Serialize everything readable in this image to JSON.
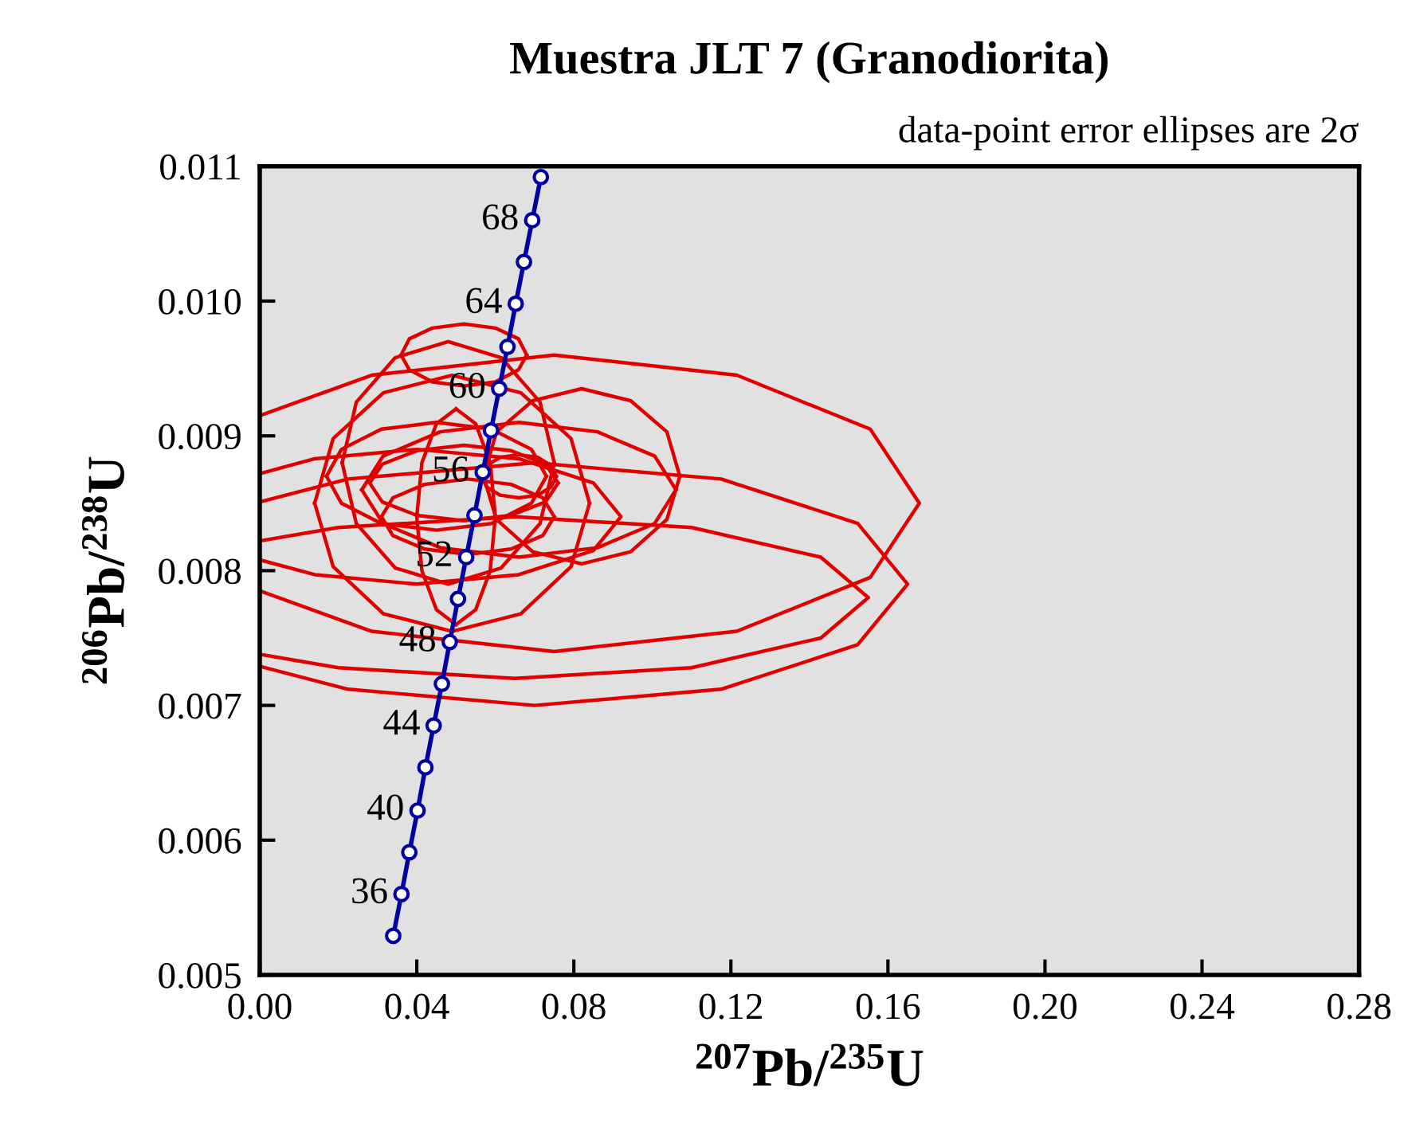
{
  "chart_data": {
    "type": "line",
    "title": "Muestra JLT 7 (Granodiorita)",
    "xlabel": "$^{207}$Pb/$^{235}$U",
    "ylabel": "$^{206}$Pb/$^{238}$U",
    "xlim": [
      0,
      0.28
    ],
    "ylim": [
      0.005,
      0.011
    ],
    "xticks": [
      {
        "value": 0,
        "label": "0.00"
      },
      {
        "value": 0.04,
        "label": "0.04"
      },
      {
        "value": 0.08,
        "label": "0.08"
      },
      {
        "value": 0.12,
        "label": "0.12"
      },
      {
        "value": 0.16,
        "label": "0.16"
      },
      {
        "value": 0.2,
        "label": "0.20"
      },
      {
        "value": 0.24,
        "label": "0.24"
      },
      {
        "value": 0.28,
        "label": "0.28"
      }
    ],
    "yticks": [
      {
        "value": 0.005,
        "label": "0.005"
      },
      {
        "value": 0.006,
        "label": "0.006"
      },
      {
        "value": 0.007,
        "label": "0.007"
      },
      {
        "value": 0.008,
        "label": "0.008"
      },
      {
        "value": 0.009,
        "label": "0.009"
      },
      {
        "value": 0.01,
        "label": "0.010"
      },
      {
        "value": 0.011,
        "label": "0.011"
      }
    ],
    "grid": false,
    "legend": false,
    "series": [
      {
        "type": "line",
        "color": "#0000a0",
        "marker": "circle",
        "x": [
          0.034,
          0.0361,
          0.0381,
          0.0402,
          0.0422,
          0.0443,
          0.0464,
          0.0484,
          0.0505,
          0.0526,
          0.0547,
          0.0568,
          0.0589,
          0.061,
          0.0631,
          0.0652,
          0.0673,
          0.0694,
          0.0716
        ],
        "values": [
          0.00529,
          0.0056,
          0.00591,
          0.00622,
          0.00654,
          0.00685,
          0.00716,
          0.00747,
          0.00779,
          0.0081,
          0.00841,
          0.00873,
          0.00904,
          0.00935,
          0.00966,
          0.00998,
          0.01029,
          0.0106,
          0.01092
        ]
      },
      {
        "color": "#e00000",
        "x": [
          0,
          0.0285,
          0.075,
          0.1215,
          0.1555,
          0.168,
          0.1555,
          0.1215,
          0.075,
          0.0285,
          0
        ],
        "values": [
          0.00915,
          0.00945,
          0.0096,
          0.00945,
          0.00905,
          0.0085,
          0.00795,
          0.00755,
          0.0074,
          0.00755,
          0.00785
        ]
      },
      {
        "color": "#e00000",
        "x": [
          0,
          0.0225,
          0.07,
          0.1175,
          0.1523,
          0.165,
          0.1523,
          0.1175,
          0.07,
          0.0225,
          0
        ],
        "values": [
          0.00851,
          0.00868,
          0.0088,
          0.00868,
          0.00835,
          0.0079,
          0.00745,
          0.00712,
          0.007,
          0.00712,
          0.00729
        ]
      },
      {
        "color": "#e00000",
        "x": [
          0,
          0.02,
          0.065,
          0.11,
          0.1429,
          0.155,
          0.1429,
          0.11,
          0.065,
          0.02,
          0
        ],
        "values": [
          0.00822,
          0.00832,
          0.0084,
          0.00832,
          0.0081,
          0.0078,
          0.0075,
          0.00728,
          0.0072,
          0.00728,
          0.00738
        ]
      },
      {
        "color": "#e00000",
        "x": [
          0,
          0.014,
          0.04,
          0.066,
          0.085,
          0.092,
          0.085,
          0.066,
          0.04,
          0.014,
          0
        ],
        "values": [
          0.00872,
          0.00883,
          0.0089,
          0.00883,
          0.00865,
          0.0084,
          0.00815,
          0.00797,
          0.0079,
          0.00797,
          0.00808
        ]
      },
      {
        "color": "#e00000",
        "x": [
          0.075,
          0.0714,
          0.0615,
          0.048,
          0.0345,
          0.0246,
          0.021
        ],
        "values": [
          0.0088,
          0.00925,
          0.00958,
          0.0097,
          0.00958,
          0.00925,
          0.0088
        ]
      },
      {
        "color": "#e00000",
        "x": [
          0.021,
          0.0246,
          0.0345,
          0.048,
          0.0615,
          0.0714,
          0.075
        ],
        "values": [
          0.0088,
          0.00835,
          0.00802,
          0.0079,
          0.00802,
          0.00835,
          0.0088
        ]
      },
      {
        "color": "#e00000",
        "x": [
          0.068,
          0.0659,
          0.06,
          0.052,
          0.044,
          0.0381,
          0.036
        ],
        "values": [
          0.0096,
          0.00972,
          0.0098,
          0.00983,
          0.0098,
          0.00972,
          0.0096
        ]
      },
      {
        "color": "#e00000",
        "x": [
          0.036,
          0.0381,
          0.044,
          0.052,
          0.06,
          0.0659,
          0.068
        ],
        "values": [
          0.0096,
          0.00949,
          0.0094,
          0.00937,
          0.0094,
          0.00949,
          0.0096
        ]
      },
      {
        "color": "#e00000",
        "x": [
          0.107,
          0.1037,
          0.0945,
          0.082,
          0.0695,
          0.0603,
          0.057
        ],
        "values": [
          0.0087,
          0.00903,
          0.00926,
          0.00935,
          0.00926,
          0.00903,
          0.0087
        ]
      },
      {
        "color": "#e00000",
        "x": [
          0.057,
          0.0603,
          0.0695,
          0.082,
          0.0945,
          0.1037,
          0.107
        ],
        "values": [
          0.0087,
          0.00838,
          0.00814,
          0.00805,
          0.00814,
          0.00838,
          0.0087
        ]
      },
      {
        "color": "#e00000",
        "x": [
          0.084,
          0.0793,
          0.0665,
          0.049,
          0.0315,
          0.0187,
          0.014
        ],
        "values": [
          0.0085,
          0.00898,
          0.00932,
          0.00945,
          0.00932,
          0.00898,
          0.0085
        ]
      },
      {
        "color": "#e00000",
        "x": [
          0.014,
          0.0187,
          0.0315,
          0.049,
          0.0665,
          0.0793,
          0.084
        ],
        "values": [
          0.0085,
          0.00803,
          0.00768,
          0.00755,
          0.00768,
          0.00803,
          0.0085
        ]
      },
      {
        "color": "#e00000",
        "x": [
          0.106,
          0.1006,
          0.086,
          0.066,
          0.046,
          0.0314,
          0.026
        ],
        "values": [
          0.0086,
          0.00885,
          0.00903,
          0.0091,
          0.00903,
          0.00885,
          0.0086
        ]
      },
      {
        "color": "#e00000",
        "x": [
          0.026,
          0.0314,
          0.046,
          0.066,
          0.086,
          0.1006,
          0.106
        ],
        "values": [
          0.0086,
          0.00835,
          0.00817,
          0.0081,
          0.00817,
          0.00835,
          0.0086
        ]
      },
      {
        "color": "#e00000",
        "x": [
          0.05,
          0.045,
          0.0413,
          0.04,
          0.0413,
          0.045,
          0.05
        ],
        "values": [
          0.0092,
          0.00909,
          0.0088,
          0.0084,
          0.008,
          0.00771,
          0.0076
        ]
      },
      {
        "color": "#e00000",
        "x": [
          0.05,
          0.055,
          0.0587,
          0.06,
          0.0587,
          0.055,
          0.05
        ],
        "values": [
          0.0076,
          0.00771,
          0.008,
          0.0084,
          0.0088,
          0.00909,
          0.0092
        ]
      },
      {
        "color": "#e00000",
        "x": [
          0.0755,
          0.0742,
          0.0708,
          0.066,
          0.0612,
          0.0578,
          0.0565
        ],
        "values": [
          0.0087,
          0.00878,
          0.00884,
          0.00886,
          0.00884,
          0.00878,
          0.0087
        ]
      },
      {
        "color": "#e00000",
        "x": [
          0.0565,
          0.0578,
          0.0612,
          0.066,
          0.0708,
          0.0742,
          0.0755
        ],
        "values": [
          0.0087,
          0.00862,
          0.00856,
          0.00854,
          0.00856,
          0.00862,
          0.0087
        ]
      },
      {
        "color": "#e00000",
        "x": [
          0.076,
          0.0728,
          0.064,
          0.052,
          0.04,
          0.0312,
          0.028
        ],
        "values": [
          0.00865,
          0.00879,
          0.00889,
          0.00893,
          0.00889,
          0.00879,
          0.00865
        ]
      },
      {
        "color": "#e00000",
        "x": [
          0.028,
          0.0312,
          0.04,
          0.052,
          0.064,
          0.0728,
          0.076
        ],
        "values": [
          0.00865,
          0.00851,
          0.00841,
          0.00837,
          0.00841,
          0.00851,
          0.00865
        ]
      },
      {
        "color": "#e00000",
        "x": [
          0.073,
          0.0692,
          0.059,
          0.045,
          0.031,
          0.0208,
          0.017
        ],
        "values": [
          0.0087,
          0.0089,
          0.00905,
          0.0091,
          0.00905,
          0.0089,
          0.0087
        ]
      },
      {
        "color": "#e00000",
        "x": [
          0.017,
          0.0208,
          0.031,
          0.045,
          0.059,
          0.0692,
          0.073
        ],
        "values": [
          0.0087,
          0.0085,
          0.00835,
          0.0083,
          0.00835,
          0.0085,
          0.0087
        ]
      },
      {
        "color": "#e00000",
        "x": [
          0.075,
          0.0721,
          0.064,
          0.053,
          0.042,
          0.0339,
          0.031
        ],
        "values": [
          0.0084,
          0.00854,
          0.00864,
          0.00868,
          0.00864,
          0.00854,
          0.0084
        ]
      },
      {
        "color": "#e00000",
        "x": [
          0.031,
          0.0339,
          0.042,
          0.053,
          0.064,
          0.0721,
          0.075
        ],
        "values": [
          0.0084,
          0.00826,
          0.00816,
          0.00812,
          0.00816,
          0.00826,
          0.0084
        ]
      }
    ],
    "annotations": [
      "data-point error ellipses are 2σ",
      {
        "text": "36",
        "x": 0.0361,
        "y": 0.0056
      },
      {
        "text": "40",
        "x": 0.0402,
        "y": 0.00622
      },
      {
        "text": "44",
        "x": 0.0443,
        "y": 0.00685
      },
      {
        "text": "48",
        "x": 0.0484,
        "y": 0.00747
      },
      {
        "text": "52",
        "x": 0.0526,
        "y": 0.0081
      },
      {
        "text": "56",
        "x": 0.0568,
        "y": 0.00873
      },
      {
        "text": "60",
        "x": 0.061,
        "y": 0.00935
      },
      {
        "text": "64",
        "x": 0.0652,
        "y": 0.00998
      },
      {
        "text": "68",
        "x": 0.0694,
        "y": 0.0106
      }
    ]
  }
}
